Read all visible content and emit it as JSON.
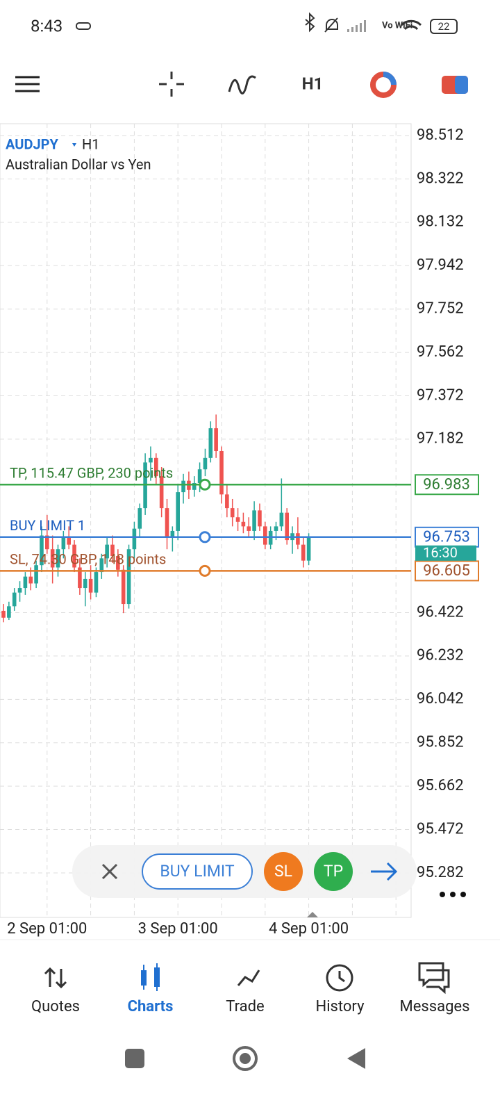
{
  "status_bar": {
    "time": "8:43",
    "network": "Vo WiFi",
    "battery": "22"
  },
  "toolbar": {
    "timeframe": "H1"
  },
  "chart_data": {
    "type": "candlestick",
    "symbol": "AUDJPY",
    "timeframe": "H1",
    "description": "Australian Dollar vs Yen",
    "categories": [
      null,
      null,
      null,
      null,
      null,
      null,
      null,
      null,
      "2 Sep 01:00",
      null,
      null,
      null,
      null,
      null,
      null,
      null,
      null,
      null,
      null,
      null,
      null,
      null,
      null,
      null,
      null,
      null,
      null,
      null,
      null,
      null,
      null,
      null,
      "3 Sep 01:00",
      null,
      null,
      null,
      null,
      null,
      null,
      null,
      null,
      null,
      null,
      null,
      null,
      null,
      null,
      null,
      null,
      null,
      null,
      null,
      null,
      null,
      null,
      null,
      "4 Sep 01:00"
    ],
    "open": [
      96.43,
      96.4,
      96.45,
      96.51,
      96.53,
      96.58,
      96.55,
      96.63,
      96.76,
      96.7,
      96.62,
      96.7,
      96.75,
      96.72,
      96.62,
      96.53,
      96.57,
      96.51,
      96.6,
      96.66,
      96.72,
      96.67,
      96.61,
      96.46,
      96.7,
      96.79,
      96.88,
      97.08,
      97.1,
      97.02,
      96.88,
      96.75,
      96.78,
      96.95,
      97.0,
      96.96,
      96.99,
      97.05,
      97.1,
      97.23,
      97.13,
      96.94,
      96.88,
      96.84,
      96.82,
      96.8,
      96.78,
      96.87,
      96.8,
      96.72,
      96.78,
      96.8,
      96.86,
      96.74,
      96.77,
      96.72,
      96.65
    ],
    "high": [
      96.46,
      96.47,
      96.53,
      96.56,
      96.6,
      96.62,
      96.65,
      96.8,
      96.85,
      96.76,
      96.72,
      96.78,
      96.8,
      96.74,
      96.66,
      96.6,
      96.63,
      96.62,
      96.68,
      96.75,
      96.76,
      96.7,
      96.63,
      96.72,
      96.82,
      96.9,
      97.12,
      97.15,
      97.12,
      97.06,
      96.92,
      96.8,
      96.98,
      97.03,
      97.04,
      97.02,
      97.08,
      97.14,
      97.26,
      97.29,
      97.15,
      96.98,
      96.92,
      96.88,
      96.86,
      96.84,
      96.91,
      96.9,
      96.82,
      96.8,
      96.82,
      97.01,
      96.88,
      96.8,
      96.84,
      96.75,
      96.77
    ],
    "low": [
      96.38,
      96.39,
      96.43,
      96.47,
      96.5,
      96.52,
      96.53,
      96.6,
      96.68,
      96.55,
      96.58,
      96.66,
      96.7,
      96.6,
      96.5,
      96.45,
      96.48,
      96.49,
      96.57,
      96.62,
      96.64,
      96.58,
      96.42,
      96.44,
      96.66,
      96.75,
      96.85,
      97.0,
      96.98,
      96.84,
      96.7,
      96.69,
      96.74,
      96.9,
      96.92,
      96.93,
      96.95,
      97.02,
      97.08,
      97.1,
      96.9,
      96.84,
      96.8,
      96.78,
      96.77,
      96.75,
      96.74,
      96.78,
      96.7,
      96.7,
      96.74,
      96.78,
      96.72,
      96.68,
      96.7,
      96.62,
      96.63
    ],
    "close": [
      96.4,
      96.45,
      96.51,
      96.53,
      96.58,
      96.55,
      96.63,
      96.76,
      96.7,
      96.62,
      96.7,
      96.75,
      96.72,
      96.62,
      96.53,
      96.57,
      96.51,
      96.6,
      96.66,
      96.72,
      96.67,
      96.61,
      96.46,
      96.7,
      96.79,
      96.88,
      97.08,
      97.1,
      97.02,
      96.88,
      96.75,
      96.78,
      96.95,
      97.0,
      96.96,
      96.99,
      97.05,
      97.1,
      97.23,
      97.13,
      96.94,
      96.88,
      96.84,
      96.82,
      96.8,
      96.78,
      96.87,
      96.8,
      96.72,
      96.78,
      96.8,
      96.86,
      96.74,
      96.77,
      96.72,
      96.65,
      96.75
    ],
    "up_color": "#26a69a",
    "down_color": "#ef5350",
    "ylim": [
      95.087,
      98.564
    ],
    "yticks": [
      98.512,
      98.322,
      98.132,
      97.942,
      97.752,
      97.562,
      97.372,
      97.182,
      96.422,
      96.232,
      96.042,
      95.852,
      95.662,
      95.472,
      95.282
    ],
    "grid": true,
    "levels": [
      {
        "label": "TP, 115.47 GBP, 230 points",
        "value": 96.983,
        "color": "#3aa84a",
        "text_color": "#2e7d32"
      },
      {
        "label": "BUY LIMIT 1",
        "value": 96.753,
        "color": "#3b7fd6",
        "text_color": "#1f5fbf"
      },
      {
        "label": "SL, 74.30 GBP, 148 points",
        "value": 96.605,
        "color": "#e07b2a",
        "text_color": "#a0522d"
      }
    ],
    "timer": "16:30"
  },
  "order_bar": {
    "type_label": "BUY LIMIT",
    "sl": "SL",
    "tp": "TP"
  },
  "nav": {
    "items": [
      "Quotes",
      "Charts",
      "Trade",
      "History",
      "Messages"
    ],
    "active": 1
  }
}
